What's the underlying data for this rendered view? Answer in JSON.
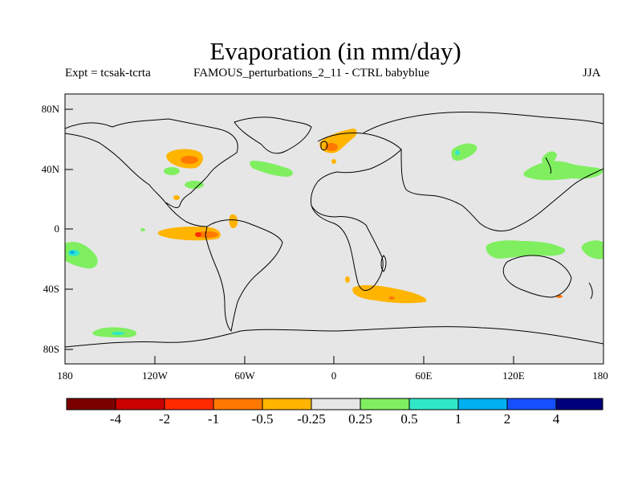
{
  "title": "Evaporation (in mm/day)",
  "subtitle": {
    "experiment": "Expt = tcsak-tcrta",
    "description": "FAMOUS_perturbations_2_11 - CTRL babyblue",
    "season": "JJA"
  },
  "axes": {
    "latitude_labels": [
      "80N",
      "40N",
      "0",
      "40S",
      "80S"
    ],
    "longitude_labels": [
      "180",
      "120W",
      "60W",
      "0",
      "60E",
      "120E",
      "180"
    ]
  },
  "colorbar": {
    "labels": [
      "-4",
      "-2",
      "-1",
      "-0.5",
      "-0.25",
      "0.25",
      "0.5",
      "1",
      "2",
      "4"
    ],
    "colors": [
      "#7a0000",
      "#c80000",
      "#ff2a00",
      "#ff7800",
      "#ffb400",
      "#e6e6e6",
      "#7fef60",
      "#30e8c8",
      "#00b0f0",
      "#1450ff",
      "#00007a"
    ]
  },
  "chart_data": {
    "type": "heatmap",
    "projection": "cylindrical equidistant",
    "variable": "Evaporation difference (mm/day)",
    "lon_range": [
      -180,
      180
    ],
    "lat_range": [
      -90,
      90
    ],
    "levels": [
      -4,
      -2,
      -1,
      -0.5,
      -0.25,
      0.25,
      0.5,
      1,
      2,
      4
    ],
    "anomaly_regions": [
      {
        "name": "NW Atlantic / Eastern North America",
        "lon": -85,
        "lat": 45,
        "category": "-1 to -0.5"
      },
      {
        "name": "Western North Atlantic",
        "lon": -40,
        "lat": 40,
        "category": "0.25 to 0.5"
      },
      {
        "name": "Norwegian / North Sea",
        "lon": 5,
        "lat": 60,
        "category": "-1 to -0.5"
      },
      {
        "name": "Eastern Tropical Pacific",
        "lon": -90,
        "lat": 0,
        "category": "-1 to -0.5"
      },
      {
        "name": "Tropical South Atlantic coast",
        "lon": -65,
        "lat": 5,
        "category": "-0.5 to -0.25"
      },
      {
        "name": "Central Asia",
        "lon": 88,
        "lat": 52,
        "category": "0.25 to 0.5"
      },
      {
        "name": "Western North Pacific",
        "lon": 145,
        "lat": 40,
        "category": "0.25 to 0.5"
      },
      {
        "name": "Indian Ocean / Indonesia",
        "lon": 110,
        "lat": -10,
        "category": "0.25 to 0.5"
      },
      {
        "name": "Southern Indian Ocean",
        "lon": 40,
        "lat": -45,
        "category": "-0.5 to -0.25"
      },
      {
        "name": "Central South Pacific",
        "lon": -175,
        "lat": -20,
        "category": "0.5 to 1"
      },
      {
        "name": "Southern Ocean Pacific sector",
        "lon": -150,
        "lat": -70,
        "category": "0.5 to 1"
      }
    ]
  }
}
